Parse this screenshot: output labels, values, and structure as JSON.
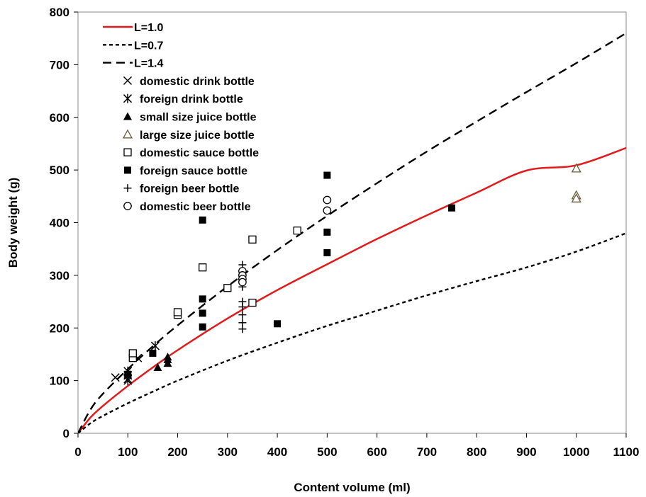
{
  "chart_data": {
    "type": "scatter",
    "title": "",
    "xlabel": "Content volume (ml)",
    "ylabel": "Body weight (g)",
    "xlim": [
      0,
      1100
    ],
    "ylim": [
      0,
      800
    ],
    "x_ticks": [
      0,
      100,
      200,
      300,
      400,
      500,
      600,
      700,
      800,
      900,
      1000,
      1100
    ],
    "y_ticks": [
      0,
      100,
      200,
      300,
      400,
      500,
      600,
      700,
      800
    ],
    "grid": false,
    "legend_position": "top-left",
    "curves": [
      {
        "name": "L=1.0",
        "style": "solid",
        "color": "#e31a1c",
        "x": [
          0,
          25,
          50,
          100,
          150,
          200,
          300,
          400,
          500,
          600,
          700,
          800,
          900,
          1000,
          1100
        ],
        "y": [
          0,
          30,
          52,
          90,
          125,
          158,
          218,
          272,
          321,
          369,
          414,
          457,
          499,
          509,
          542
        ]
      },
      {
        "name": "L=0.7",
        "style": "dotted",
        "color": "#000000",
        "x": [
          0,
          25,
          50,
          100,
          150,
          200,
          300,
          400,
          500,
          600,
          700,
          800,
          900,
          1000,
          1100
        ],
        "y": [
          0,
          19,
          33,
          57,
          79,
          100,
          138,
          172,
          204,
          233,
          262,
          289,
          315,
          345,
          380
        ]
      },
      {
        "name": "L=1.4",
        "style": "dashed",
        "color": "#000000",
        "x": [
          0,
          25,
          50,
          100,
          150,
          200,
          300,
          400,
          500,
          600,
          700,
          800,
          900,
          1000,
          1100
        ],
        "y": [
          0,
          45,
          75,
          122,
          165,
          205,
          279,
          348,
          413,
          475,
          535,
          592,
          648,
          703,
          760
        ]
      }
    ],
    "series": [
      {
        "name": "domestic drink bottle",
        "marker": "x",
        "points": [
          [
            75,
            106
          ],
          [
            100,
            103
          ],
          [
            100,
            110
          ],
          [
            120,
            143
          ]
        ]
      },
      {
        "name": "foreign drink bottle",
        "marker": "asterisk",
        "points": [
          [
            100,
            100
          ],
          [
            100,
            110
          ],
          [
            100,
            118
          ],
          [
            155,
            166
          ]
        ]
      },
      {
        "name": "small size juice bottle",
        "marker": "filled-triangle",
        "points": [
          [
            160,
            125
          ],
          [
            180,
            133
          ],
          [
            180,
            140
          ],
          [
            180,
            145
          ]
        ]
      },
      {
        "name": "large size juice bottle",
        "marker": "open-triangle",
        "points": [
          [
            1000,
            503
          ],
          [
            1000,
            452
          ],
          [
            1000,
            446
          ]
        ]
      },
      {
        "name": "domestic sauce bottle",
        "marker": "open-square",
        "points": [
          [
            110,
            143
          ],
          [
            110,
            152
          ],
          [
            200,
            225
          ],
          [
            200,
            230
          ],
          [
            250,
            315
          ],
          [
            300,
            276
          ],
          [
            350,
            368
          ],
          [
            350,
            248
          ],
          [
            440,
            385
          ]
        ]
      },
      {
        "name": "foreign sauce bottle",
        "marker": "filled-square",
        "points": [
          [
            100,
            112
          ],
          [
            150,
            152
          ],
          [
            250,
            405
          ],
          [
            250,
            255
          ],
          [
            250,
            228
          ],
          [
            250,
            202
          ],
          [
            400,
            208
          ],
          [
            500,
            490
          ],
          [
            500,
            382
          ],
          [
            500,
            343
          ],
          [
            750,
            428
          ]
        ]
      },
      {
        "name": "foreign beer bottle",
        "marker": "plus",
        "points": [
          [
            330,
            320
          ],
          [
            330,
            295
          ],
          [
            330,
            278
          ],
          [
            330,
            250
          ],
          [
            330,
            240
          ],
          [
            330,
            225
          ],
          [
            330,
            210
          ],
          [
            330,
            198
          ]
        ]
      },
      {
        "name": "domestic beer bottle",
        "marker": "open-circle",
        "points": [
          [
            330,
            308
          ],
          [
            330,
            300
          ],
          [
            330,
            293
          ],
          [
            330,
            287
          ],
          [
            500,
            443
          ],
          [
            500,
            423
          ]
        ]
      }
    ]
  }
}
